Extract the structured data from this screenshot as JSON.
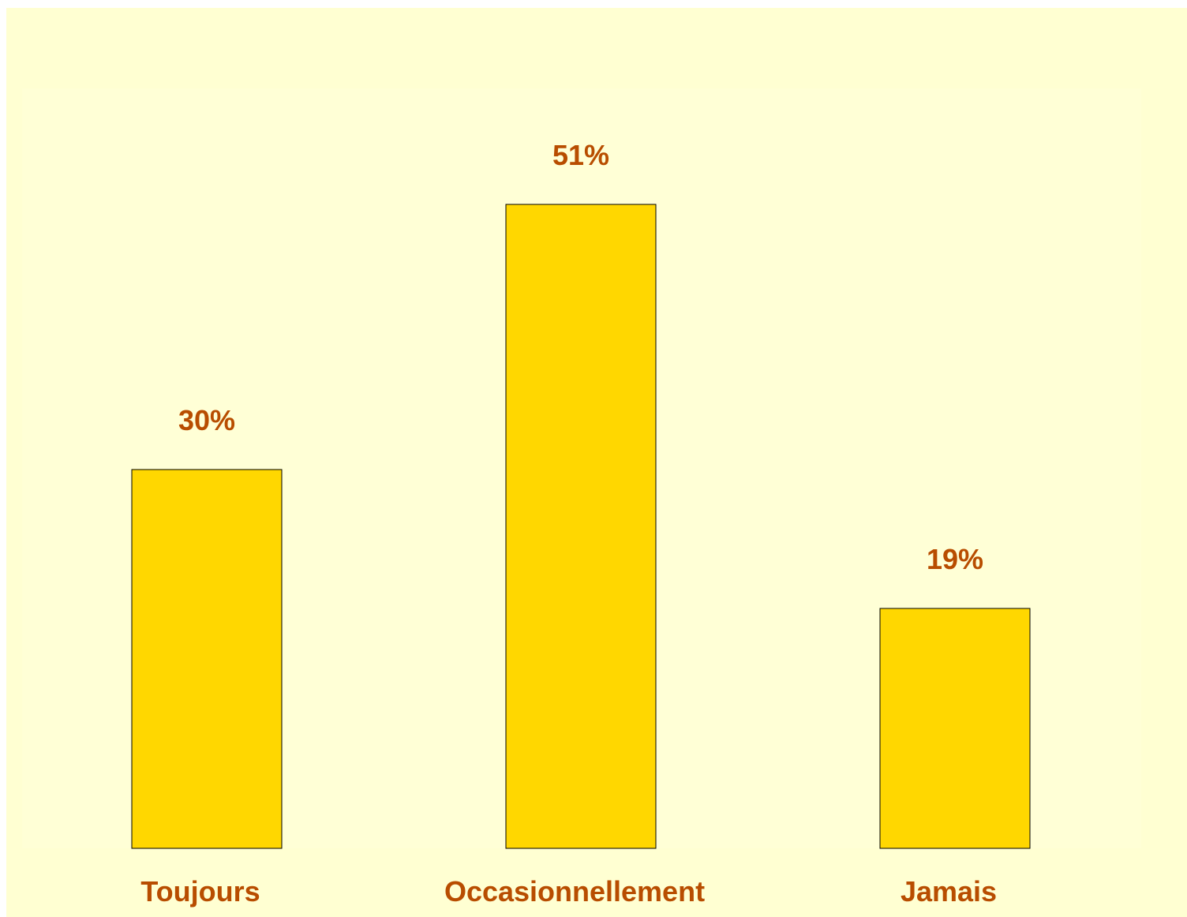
{
  "chart_data": {
    "type": "bar",
    "categories": [
      "Toujours",
      "Occasionnellement",
      "Jamais"
    ],
    "values": [
      30,
      51,
      19
    ],
    "data_labels": [
      "30%",
      "51%",
      "19%"
    ],
    "title": "",
    "xlabel": "",
    "ylabel": "",
    "ylim": [
      0,
      60
    ],
    "grid": false,
    "legend": "none",
    "colors": {
      "background": "#ffffd2",
      "bar_fill": "#ffd700",
      "bar_stroke": "#000000",
      "label": "#b84d00"
    }
  }
}
